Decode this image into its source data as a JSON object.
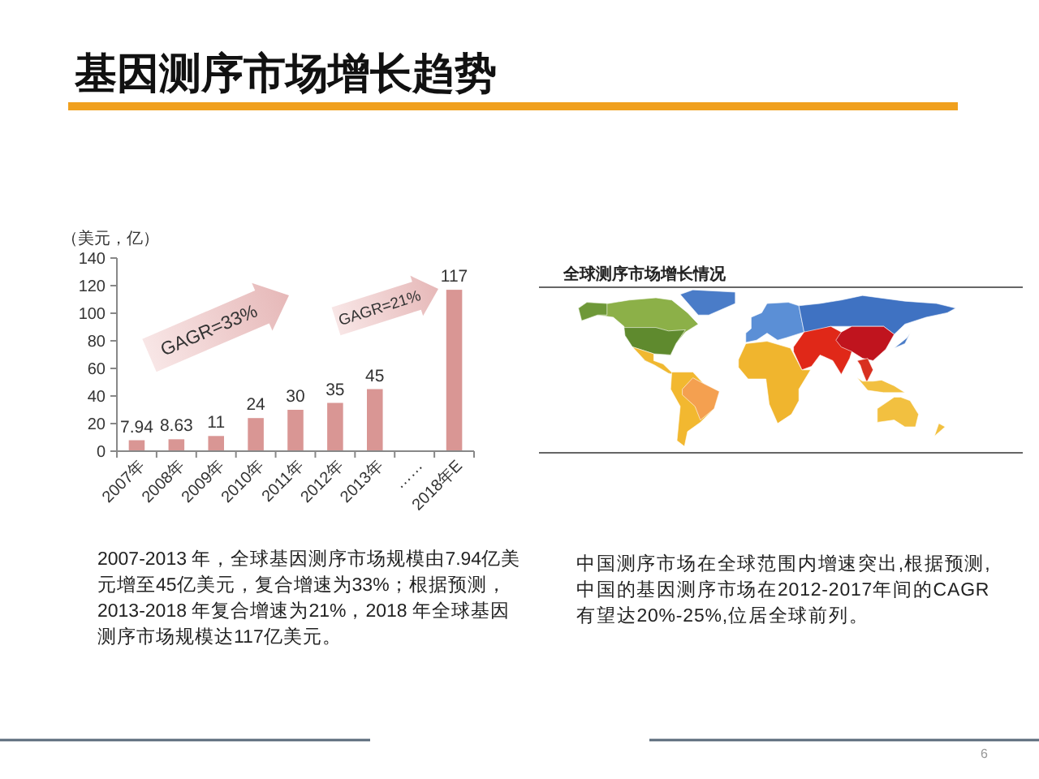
{
  "chart_data": {
    "type": "bar",
    "title": "基因测序市场增长趋势",
    "ylabel": "（美元，亿）",
    "categories": [
      "2007年",
      "2008年",
      "2009年",
      "2010年",
      "2011年",
      "2012年",
      "2013年",
      "……",
      "2018年E"
    ],
    "values": [
      7.94,
      8.63,
      11,
      24,
      30,
      35,
      45,
      null,
      117
    ],
    "color": "#d99694",
    "ylim": [
      0,
      140
    ],
    "yticks": [
      0,
      20,
      40,
      60,
      80,
      100,
      120,
      140
    ],
    "data_labels": true,
    "annotations": [
      "GAGR=33%",
      "GAGR=21%",
      "全球测序市场增长情况",
      "2007-2013 年，全球基因测序市场规模由7.94亿美元增至45亿美元，复合增速为33%；根据预测，2013-2018 年复合增速为21%，2018 年全球基因测序市场规模达117亿美元。",
      "中国测序市场在全球范围内增速突出,根据预测,中国的基因测序市场在2012-2017年间的CAGR有望达20%-25%,位居全球前列。",
      "6"
    ]
  }
}
